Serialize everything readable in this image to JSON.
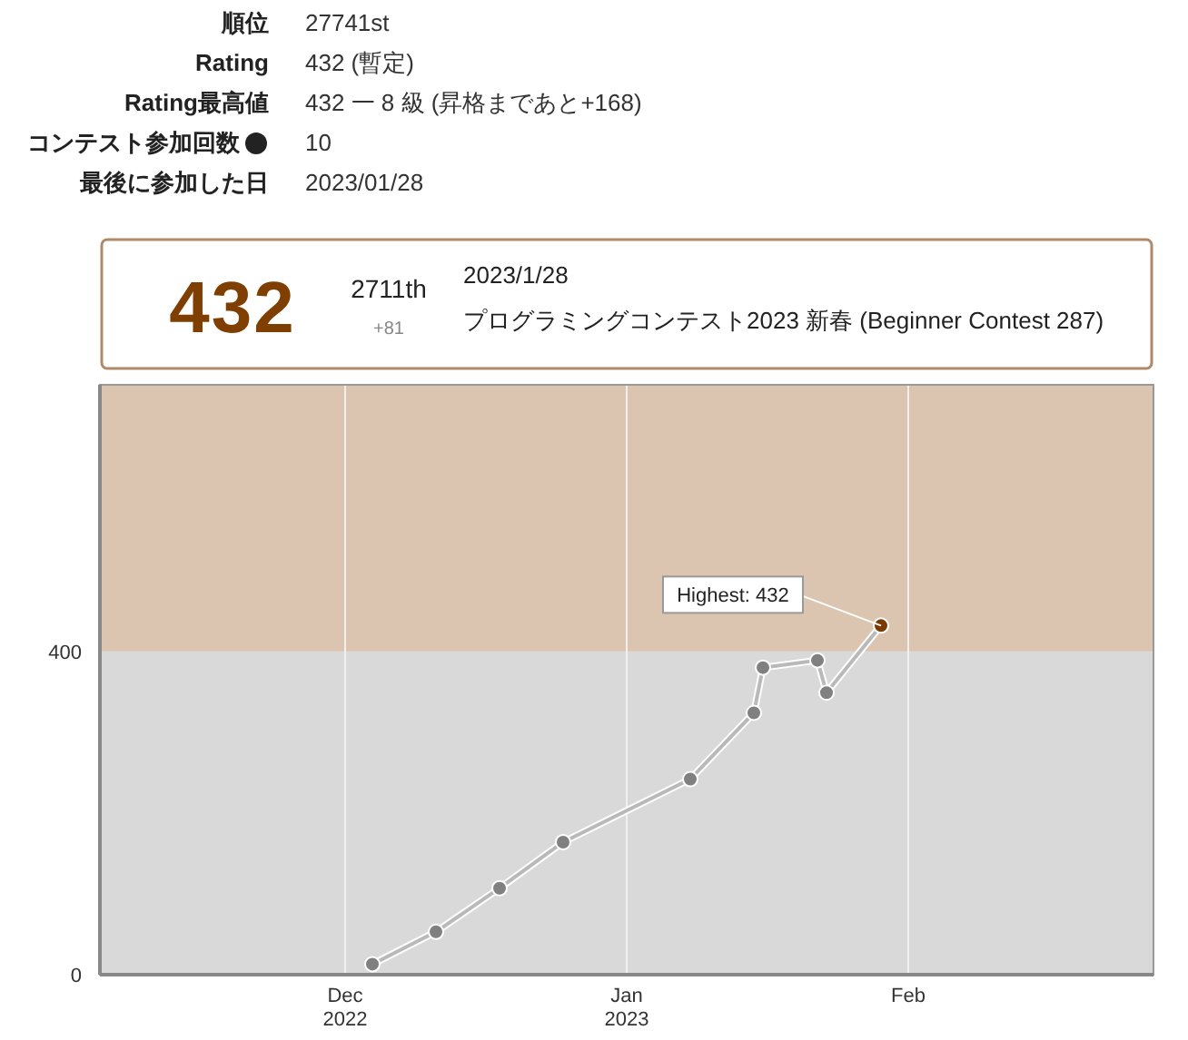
{
  "chart_data": [
    {
      "type": "other",
      "categories": [
        "順位",
        "Rating",
        "Rating最高値",
        "コンテスト参加回数",
        "最後に参加した日"
      ],
      "annotations": [
        "27741st",
        "432 (暫定)",
        "432 一 8 級 (昇格まであと+168)",
        "10",
        "2023/01/28"
      ]
    },
    {
      "type": "other",
      "annotations": [
        "432",
        "2711th",
        "+81",
        "2023/1/28",
        "プログラミングコンテスト2023 新春 (Beginner Contest 287)"
      ]
    },
    {
      "type": "line",
      "x": [
        "2022-12-04",
        "2022-12-11",
        "2022-12-18",
        "2022-12-25",
        "2023-01-08",
        "2023-01-15",
        "2023-01-16",
        "2023-01-22",
        "2023-01-23",
        "2023-01-29"
      ],
      "series": [
        {
          "color": "#808080",
          "colors": [
            "#808080",
            "#808080",
            "#808080",
            "#808080",
            "#808080",
            "#808080",
            "#808080",
            "#808080",
            "#808080",
            "#7a3a00"
          ],
          "values": [
            13,
            53,
            107,
            164,
            242,
            324,
            380,
            389,
            349,
            432
          ]
        }
      ],
      "xlim": [
        "2022-11-04",
        "2023-02-28"
      ],
      "ylim": [
        0,
        730
      ],
      "xticks": [
        {
          "value": "2022-12-01",
          "label": "Dec\n2022"
        },
        {
          "value": "2023-01-01",
          "label": "Jan\n2023"
        },
        {
          "value": "2023-02-01",
          "label": "Feb"
        }
      ],
      "yticks": [
        0,
        400
      ],
      "bands": [
        {
          "axis": "y",
          "from": 0,
          "to": 400,
          "color": "#d9d9d9"
        },
        {
          "axis": "y",
          "from": 400,
          "to": 730,
          "color": "#dbc4b0"
        }
      ],
      "grid": "x",
      "marker": "circle",
      "line_style": "solid",
      "annotations": [
        {
          "text": "Highest: 432",
          "x": "2023-01-29",
          "y": 432
        }
      ]
    }
  ]
}
